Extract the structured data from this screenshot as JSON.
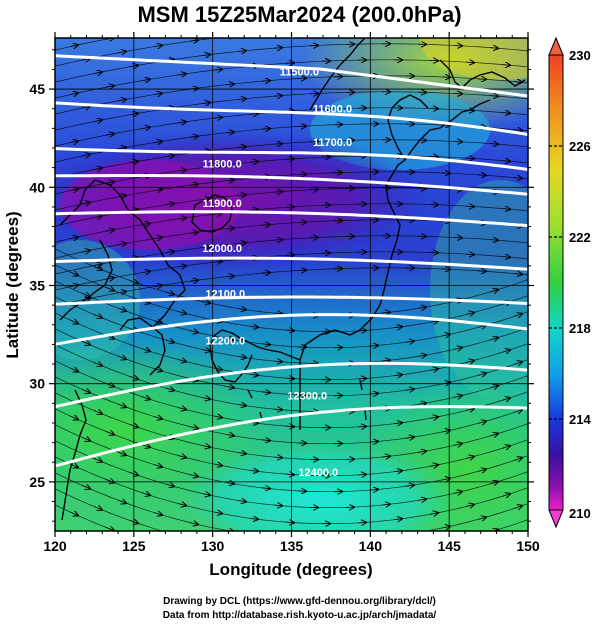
{
  "title": "MSM 15Z25Mar2024 (200.0hPa)",
  "credits": {
    "line1": "Drawing by DCL (https://www.gfd-dennou.org/library/dcl/)",
    "line2": "Data from http://database.rish.kyoto-u.ac.jp/arch/jmadata/"
  },
  "map": {
    "xlabel": "Longitude (degrees)",
    "ylabel": "Latitude  (degrees)",
    "xlim": [
      120,
      150
    ],
    "ylim": [
      22.5,
      47.6
    ],
    "xticks": [
      120,
      125,
      130,
      135,
      140,
      145,
      150
    ],
    "yticks": [
      25,
      30,
      35,
      40,
      45
    ],
    "contours": [
      {
        "value": "11500.0",
        "label_lon": 135.5,
        "label_lat": 45.9
      },
      {
        "value": "11600.0",
        "label_lon": 137.6,
        "label_lat": 44.0
      },
      {
        "value": "11700.0",
        "label_lon": 137.6,
        "label_lat": 42.3
      },
      {
        "value": "11800.0",
        "label_lon": 130.6,
        "label_lat": 41.2
      },
      {
        "value": "11900.0",
        "label_lon": 130.6,
        "label_lat": 39.2
      },
      {
        "value": "12000.0",
        "label_lon": 130.6,
        "label_lat": 36.9
      },
      {
        "value": "12100.0",
        "label_lon": 130.8,
        "label_lat": 34.6
      },
      {
        "value": "12200.0",
        "label_lon": 130.8,
        "label_lat": 32.2
      },
      {
        "value": "12300.0",
        "label_lon": 136.0,
        "label_lat": 29.4
      },
      {
        "value": "12400.0",
        "label_lon": 136.7,
        "label_lat": 25.5
      }
    ]
  },
  "colorbar": {
    "min": 210,
    "max": 230,
    "labels": [
      "230",
      "226",
      "222",
      "218",
      "214",
      "210"
    ],
    "colors": [
      "#e83a2a",
      "#f08a20",
      "#e8d020",
      "#b8e020",
      "#40d040",
      "#10d8c0",
      "#10a8e8",
      "#1040e0",
      "#3010a0",
      "#8010b0",
      "#e020c0"
    ]
  }
}
